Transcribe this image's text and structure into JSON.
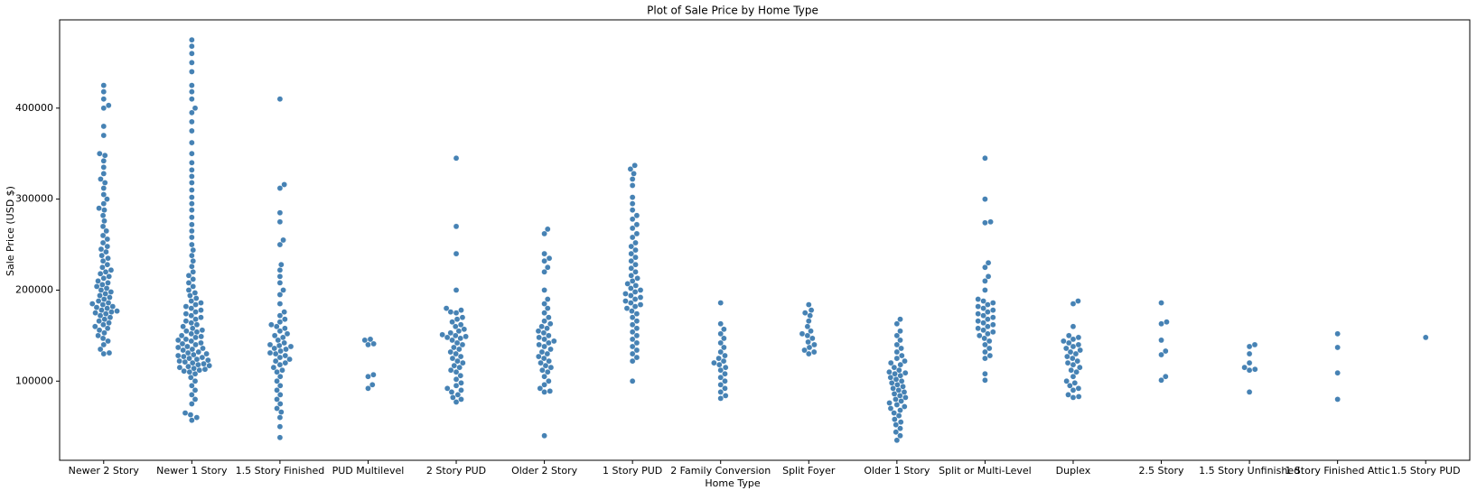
{
  "chart_data": {
    "type": "swarm",
    "title": "Plot of Sale Price by Home Type",
    "x_label": "Home Type",
    "y_label": "Sale Price (USD $)",
    "color": "#4682b4",
    "ylim": [
      13000,
      497000
    ],
    "yticks": [
      100000,
      200000,
      300000,
      400000
    ],
    "categories": [
      "Newer 2 Story",
      "Newer 1 Story",
      "1.5 Story Finished",
      "PUD Multilevel",
      "2 Story PUD",
      "Older 2 Story",
      "1 Story PUD",
      "2 Family Conversion",
      "Split Foyer",
      "Older 1 Story",
      "Split or Multi-Level",
      "Duplex",
      "2.5 Story",
      "1.5 Story Unfinished",
      "1 Story Finished Attic",
      "1.5 Story PUD"
    ],
    "values": [
      [
        425000,
        418000,
        410000,
        403000,
        400000,
        380000,
        370000,
        350000,
        348000,
        342000,
        335000,
        328000,
        322000,
        318000,
        312000,
        305000,
        300000,
        295000,
        290000,
        288000,
        282000,
        276000,
        270000,
        265000,
        260000,
        256000,
        252000,
        248000,
        245000,
        242000,
        238000,
        235000,
        232000,
        228000,
        225000,
        222000,
        220000,
        218000,
        215000,
        213000,
        210000,
        208000,
        206000,
        204000,
        202000,
        200000,
        198000,
        196000,
        194000,
        192000,
        190000,
        188000,
        186000,
        185000,
        184000,
        182000,
        181000,
        180000,
        178000,
        177000,
        176000,
        175000,
        174000,
        172000,
        170000,
        168000,
        166000,
        164000,
        162000,
        160000,
        158000,
        156000,
        153000,
        150000,
        147000,
        144000,
        140000,
        135000,
        131000,
        130000
      ],
      [
        475000,
        468000,
        460000,
        450000,
        440000,
        425000,
        418000,
        410000,
        400000,
        395000,
        385000,
        375000,
        362000,
        350000,
        340000,
        332000,
        325000,
        318000,
        310000,
        302000,
        295000,
        288000,
        280000,
        272000,
        265000,
        258000,
        250000,
        244000,
        238000,
        232000,
        226000,
        220000,
        216000,
        212000,
        208000,
        204000,
        200000,
        197000,
        194000,
        191000,
        188000,
        186000,
        184000,
        182000,
        180000,
        178000,
        176000,
        174000,
        172000,
        170000,
        168000,
        166000,
        164000,
        162000,
        160000,
        158000,
        156000,
        155000,
        154000,
        152000,
        150000,
        149000,
        148000,
        146000,
        145000,
        144000,
        142000,
        141000,
        140000,
        138000,
        137000,
        136000,
        135000,
        134000,
        132000,
        131000,
        130000,
        129000,
        128000,
        127000,
        126000,
        125000,
        124000,
        123000,
        122000,
        121000,
        120000,
        119000,
        118000,
        117000,
        116000,
        115000,
        114000,
        113000,
        112000,
        111000,
        110000,
        108000,
        104000,
        100000,
        95000,
        90000,
        85000,
        80000,
        75000,
        65000,
        63000,
        60000,
        57000
      ],
      [
        410000,
        316000,
        312000,
        285000,
        275000,
        255000,
        250000,
        228000,
        222000,
        215000,
        208000,
        200000,
        195000,
        185000,
        176000,
        172000,
        168000,
        165000,
        162000,
        160000,
        158000,
        155000,
        152000,
        150000,
        148000,
        145000,
        142000,
        140000,
        139000,
        138000,
        136000,
        135000,
        133000,
        131000,
        130000,
        128000,
        126000,
        124000,
        122000,
        120000,
        118000,
        115000,
        112000,
        110000,
        105000,
        100000,
        95000,
        90000,
        85000,
        80000,
        75000,
        70000,
        66000,
        60000,
        50000,
        38000
      ],
      [
        146000,
        145000,
        141000,
        140000,
        107000,
        105000,
        96000,
        92000
      ],
      [
        345000,
        270000,
        240000,
        200000,
        180000,
        178000,
        176000,
        175000,
        170000,
        168000,
        165000,
        162000,
        160000,
        157000,
        155000,
        153000,
        151000,
        150000,
        149000,
        148000,
        147000,
        145000,
        142000,
        140000,
        137000,
        135000,
        132000,
        130000,
        127000,
        125000,
        122000,
        120000,
        117000,
        115000,
        112000,
        110000,
        106000,
        102000,
        98000,
        95000,
        92000,
        90000,
        88000,
        85000,
        82000,
        80000,
        77000
      ],
      [
        267000,
        262000,
        240000,
        235000,
        232000,
        225000,
        220000,
        200000,
        190000,
        185000,
        180000,
        175000,
        170000,
        166000,
        163000,
        160000,
        158000,
        155000,
        153000,
        150000,
        148000,
        146000,
        144000,
        142000,
        140000,
        138000,
        135000,
        132000,
        130000,
        127000,
        125000,
        122000,
        120000,
        117000,
        115000,
        112000,
        110000,
        105000,
        100000,
        96000,
        92000,
        89000,
        88000,
        40000
      ],
      [
        337000,
        333000,
        328000,
        322000,
        315000,
        302000,
        295000,
        288000,
        282000,
        278000,
        272000,
        268000,
        262000,
        258000,
        252000,
        248000,
        244000,
        240000,
        236000,
        232000,
        228000,
        224000,
        220000,
        216000,
        213000,
        210000,
        207000,
        205000,
        202000,
        200000,
        198000,
        196000,
        194000,
        192000,
        190000,
        188000,
        186000,
        184000,
        182000,
        180000,
        177000,
        174000,
        170000,
        166000,
        162000,
        158000,
        154000,
        150000,
        146000,
        142000,
        138000,
        134000,
        130000,
        126000,
        122000,
        100000
      ],
      [
        186000,
        163000,
        157000,
        152000,
        147000,
        142000,
        137000,
        132000,
        128000,
        125000,
        122000,
        120000,
        118000,
        115000,
        112000,
        108000,
        104000,
        100000,
        96000,
        92000,
        88000,
        84000,
        81000
      ],
      [
        184000,
        178000,
        175000,
        172000,
        166000,
        160000,
        155000,
        152000,
        150000,
        147000,
        143000,
        140000,
        137000,
        134000,
        132000,
        130000
      ],
      [
        168000,
        163000,
        155000,
        150000,
        145000,
        140000,
        136000,
        132000,
        128000,
        125000,
        122000,
        120000,
        118000,
        115000,
        112000,
        110000,
        109000,
        108000,
        106000,
        104000,
        102000,
        100000,
        98000,
        96000,
        94000,
        92000,
        90000,
        88000,
        86000,
        84000,
        82000,
        80000,
        78000,
        76000,
        74000,
        72000,
        70000,
        68000,
        65000,
        62000,
        58000,
        55000,
        52000,
        48000,
        44000,
        40000,
        35000
      ],
      [
        345000,
        300000,
        275000,
        274000,
        230000,
        225000,
        215000,
        210000,
        200000,
        190000,
        188000,
        186000,
        184000,
        182000,
        180000,
        178000,
        176000,
        174000,
        172000,
        170000,
        168000,
        166000,
        164000,
        162000,
        160000,
        158000,
        156000,
        154000,
        152000,
        150000,
        147000,
        144000,
        140000,
        136000,
        132000,
        128000,
        125000,
        108000,
        101000
      ],
      [
        188000,
        185000,
        160000,
        150000,
        148000,
        146000,
        144000,
        142000,
        140000,
        138000,
        136000,
        134000,
        132000,
        130000,
        127000,
        125000,
        122000,
        120000,
        118000,
        115000,
        112000,
        110000,
        105000,
        100000,
        98000,
        95000,
        92000,
        90000,
        85000,
        83000,
        82000
      ],
      [
        186000,
        165000,
        163000,
        145000,
        133000,
        129000,
        105000,
        101000
      ],
      [
        140000,
        138000,
        130000,
        120000,
        115000,
        113000,
        112000,
        88000
      ],
      [
        152000,
        137000,
        109000,
        80000
      ],
      [
        148000
      ]
    ]
  }
}
